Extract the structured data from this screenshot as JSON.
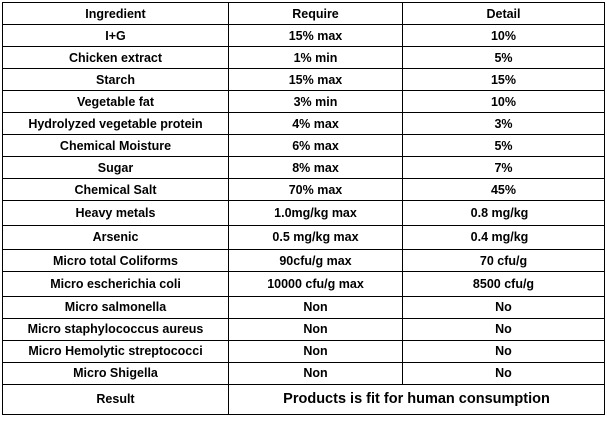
{
  "headers": {
    "ingredient": "Ingredient",
    "require": "Require",
    "detail": "Detail"
  },
  "rows": [
    {
      "ingredient": "I+G",
      "require": "15% max",
      "detail": "10%"
    },
    {
      "ingredient": "Chicken extract",
      "require": "1% min",
      "detail": "5%"
    },
    {
      "ingredient": "Starch",
      "require": "15% max",
      "detail": "15%"
    },
    {
      "ingredient": "Vegetable fat",
      "require": "3% min",
      "detail": "10%"
    },
    {
      "ingredient": "Hydrolyzed vegetable protein",
      "require": "4% max",
      "detail": "3%"
    },
    {
      "ingredient": "Chemical Moisture",
      "require": "6% max",
      "detail": "5%"
    },
    {
      "ingredient": "Sugar",
      "require": "8% max",
      "detail": "7%"
    },
    {
      "ingredient": "Chemical Salt",
      "require": "70% max",
      "detail": "45%"
    },
    {
      "ingredient": "Heavy metals",
      "require": "1.0mg/kg max",
      "detail": "0.8 mg/kg"
    },
    {
      "ingredient": "Arsenic",
      "require": "0.5 mg/kg max",
      "detail": "0.4 mg/kg"
    },
    {
      "ingredient": "Micro total Coliforms",
      "require": "90cfu/g max",
      "detail": "70 cfu/g"
    },
    {
      "ingredient": "Micro escherichia coli",
      "require": "10000 cfu/g max",
      "detail": "8500 cfu/g"
    },
    {
      "ingredient": "Micro salmonella",
      "require": "Non",
      "detail": "No"
    },
    {
      "ingredient": "Micro staphylococcus aureus",
      "require": "Non",
      "detail": "No"
    },
    {
      "ingredient": "Micro Hemolytic streptococci",
      "require": "Non",
      "detail": "No"
    },
    {
      "ingredient": "Micro Shigella",
      "require": "Non",
      "detail": "No"
    }
  ],
  "result": {
    "label": "Result",
    "text": "Products is fit for human consumption"
  }
}
